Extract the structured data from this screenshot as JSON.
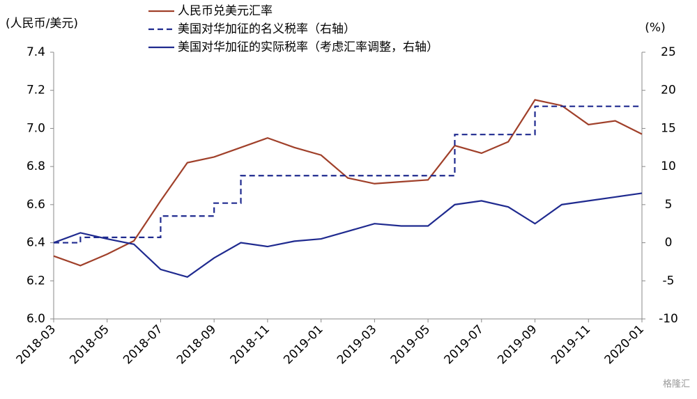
{
  "chart_data": {
    "type": "line",
    "y_label": "(人民币/美元)",
    "y2_label": "(%)",
    "watermark": "格隆汇",
    "x": [
      "2018-03",
      "2018-04",
      "2018-05",
      "2018-06",
      "2018-07",
      "2018-08",
      "2018-09",
      "2018-10",
      "2018-11",
      "2018-12",
      "2019-01",
      "2019-02",
      "2019-03",
      "2019-04",
      "2019-05",
      "2019-06",
      "2019-07",
      "2019-08",
      "2019-09",
      "2019-10",
      "2019-11",
      "2019-12",
      "2020-01"
    ],
    "xticks": [
      "2018-03",
      "2018-05",
      "2018-07",
      "2018-09",
      "2018-11",
      "2019-01",
      "2019-03",
      "2019-05",
      "2019-07",
      "2019-09",
      "2019-11",
      "2020-01"
    ],
    "series": [
      {
        "name": "人民币兑美元汇率",
        "color": "#a0402a",
        "dash": false,
        "step": false,
        "values": [
          6.33,
          6.28,
          6.34,
          6.41,
          6.62,
          6.82,
          6.85,
          6.9,
          6.95,
          6.9,
          6.86,
          6.74,
          6.71,
          6.72,
          6.73,
          6.91,
          6.87,
          6.93,
          7.15,
          7.12,
          7.02,
          7.04,
          6.97
        ]
      },
      {
        "name": "美国对华加征的名义税率（右轴）",
        "color": "#1f2a8f",
        "dash": true,
        "step": true,
        "axis": "y2",
        "values": [
          0,
          0.7,
          0.7,
          0.7,
          3.5,
          3.5,
          5.2,
          8.8,
          8.8,
          8.8,
          8.8,
          8.8,
          8.8,
          8.8,
          8.8,
          14.2,
          14.2,
          14.2,
          17.9,
          17.9,
          17.9,
          17.9,
          17.9
        ]
      },
      {
        "name": "美国对华加征的实际税率（考虑汇率调整，右轴）",
        "color": "#1f2a8f",
        "dash": false,
        "step": false,
        "axis": "y2",
        "values": [
          0,
          1.3,
          0.5,
          -0.2,
          -3.5,
          -4.5,
          -2,
          0,
          -0.5,
          0.2,
          0.5,
          1.5,
          2.5,
          2.2,
          2.2,
          5,
          5.5,
          4.7,
          2.5,
          5,
          5.5,
          6,
          6.5
        ]
      }
    ],
    "ylim": [
      6.0,
      7.4
    ],
    "yticks": [
      {
        "value": 6,
        "label": "6.0"
      },
      6.2,
      6.4,
      6.6,
      6.8,
      {
        "value": 7,
        "label": "7.0"
      },
      7.2,
      7.4
    ],
    "y2lim": [
      -10,
      25
    ],
    "y2ticks": [
      -10,
      -5,
      0,
      5,
      10,
      15,
      20,
      25
    ]
  }
}
